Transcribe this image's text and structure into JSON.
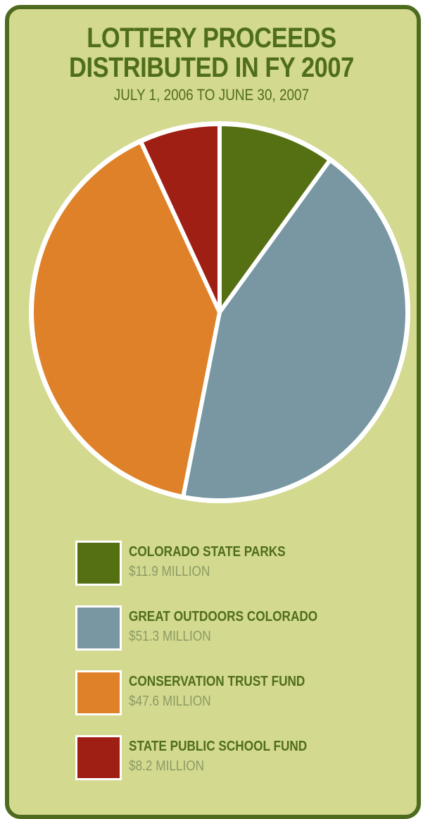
{
  "chart_data": {
    "type": "pie",
    "title": [
      "LOTTERY PROCEEDS",
      "DISTRIBUTED IN FY 2007"
    ],
    "subtitle": "JULY 1, 2006 TO JUNE 30, 2007",
    "legend_position": "bottom",
    "slices": [
      {
        "name": "COLORADO STATE PARKS",
        "label": "$11.9 MILLION",
        "value": 11.9,
        "color": "#556f13"
      },
      {
        "name": "GREAT OUTDOORS COLORADO",
        "label": "$51.3 MILLION",
        "value": 51.3,
        "color": "#7897a3"
      },
      {
        "name": "CONSERVATION TRUST FUND",
        "label": "$47.6 MILLION",
        "value": 47.6,
        "color": "#df8128"
      },
      {
        "name": "STATE PUBLIC SCHOOL FUND",
        "label": "$8.2 MILLION",
        "value": 8.2,
        "color": "#a01f15"
      }
    ]
  }
}
